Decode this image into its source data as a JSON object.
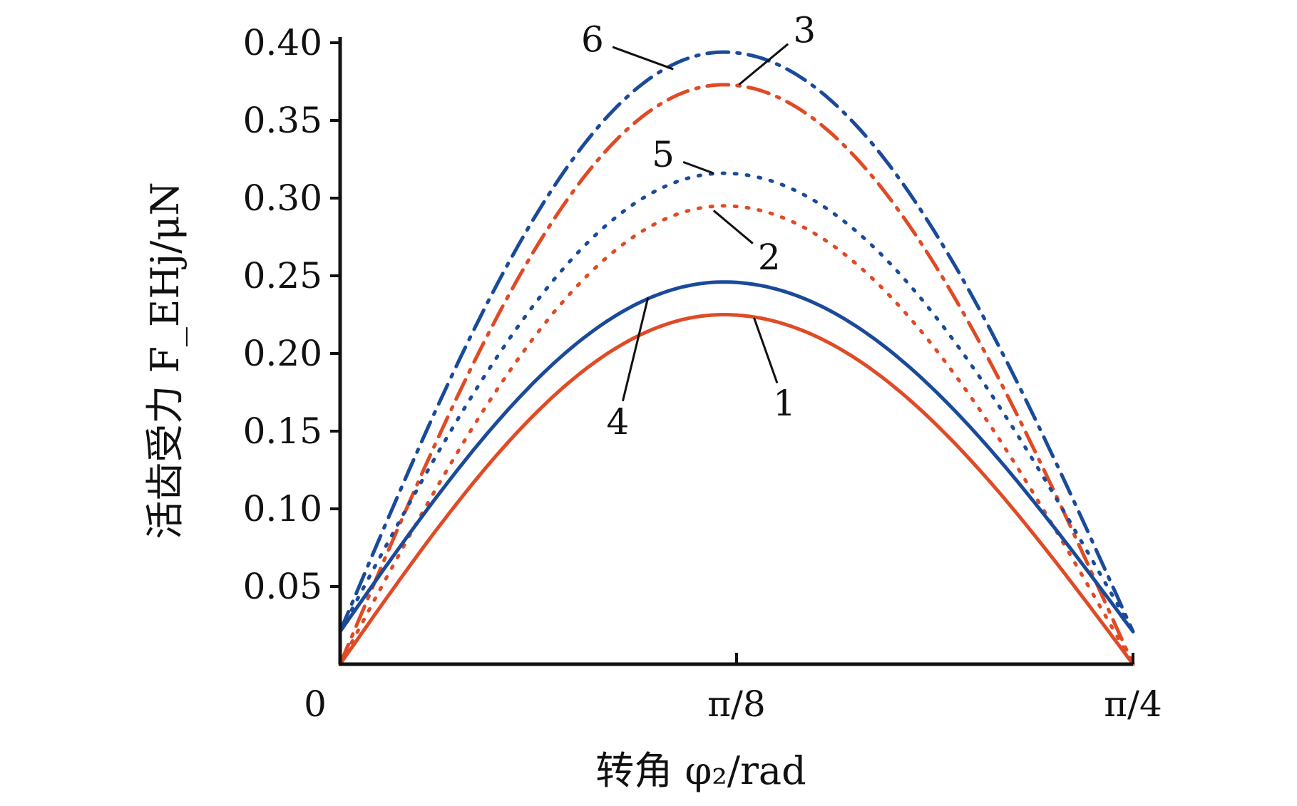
{
  "chart_data": {
    "type": "line",
    "title": "",
    "xlabel": "转角 φ₂/rad",
    "ylabel": "活齿受力 F_EHj/μN",
    "xlim": [
      0,
      0.7854
    ],
    "ylim": [
      0,
      0.4
    ],
    "x_ticks": [
      {
        "value": 0,
        "label": "0"
      },
      {
        "value": 0.3927,
        "label": "π/8"
      },
      {
        "value": 0.7854,
        "label": "π/4"
      }
    ],
    "y_ticks": [
      {
        "value": 0.05,
        "label": "0.05"
      },
      {
        "value": 0.1,
        "label": "0.10"
      },
      {
        "value": 0.15,
        "label": "0.15"
      },
      {
        "value": 0.2,
        "label": "0.20"
      },
      {
        "value": 0.25,
        "label": "0.25"
      },
      {
        "value": 0.3,
        "label": "0.30"
      },
      {
        "value": 0.35,
        "label": "0.35"
      },
      {
        "value": 0.4,
        "label": "0.40"
      }
    ],
    "grid": false,
    "legend": "none",
    "series": [
      {
        "name": "1",
        "color": "#e04a25",
        "dash": "solid",
        "x_peak": 0.38,
        "start": 0.0,
        "peak": 0.225,
        "end": 0.0
      },
      {
        "name": "2",
        "color": "#e04a25",
        "dash": "dotted",
        "x_peak": 0.38,
        "start": 0.0,
        "peak": 0.295,
        "end": 0.0
      },
      {
        "name": "3",
        "color": "#e04a25",
        "dash": "dashdot",
        "x_peak": 0.38,
        "start": 0.0,
        "peak": 0.373,
        "end": 0.0
      },
      {
        "name": "4",
        "color": "#1a4a9a",
        "dash": "solid",
        "x_peak": 0.38,
        "start": 0.021,
        "peak": 0.246,
        "end": 0.021
      },
      {
        "name": "5",
        "color": "#1a4a9a",
        "dash": "dotted",
        "x_peak": 0.38,
        "start": 0.021,
        "peak": 0.316,
        "end": 0.021
      },
      {
        "name": "6",
        "color": "#1a4a9a",
        "dash": "dashdot",
        "x_peak": 0.38,
        "start": 0.021,
        "peak": 0.394,
        "end": 0.021
      }
    ],
    "annotations": [
      {
        "label": "1",
        "target_x": 0.41,
        "target_y": 0.223,
        "text_x": 0.44,
        "text_y": 0.168
      },
      {
        "label": "2",
        "target_x": 0.37,
        "target_y": 0.292,
        "text_x": 0.425,
        "text_y": 0.262
      },
      {
        "label": "3",
        "target_x": 0.395,
        "target_y": 0.373,
        "text_x": 0.46,
        "text_y": 0.408
      },
      {
        "label": "4",
        "target_x": 0.305,
        "target_y": 0.236,
        "text_x": 0.275,
        "text_y": 0.156
      },
      {
        "label": "5",
        "target_x": 0.37,
        "target_y": 0.316,
        "text_x": 0.32,
        "text_y": 0.328
      },
      {
        "label": "6",
        "target_x": 0.33,
        "target_y": 0.383,
        "text_x": 0.25,
        "text_y": 0.402
      }
    ]
  }
}
